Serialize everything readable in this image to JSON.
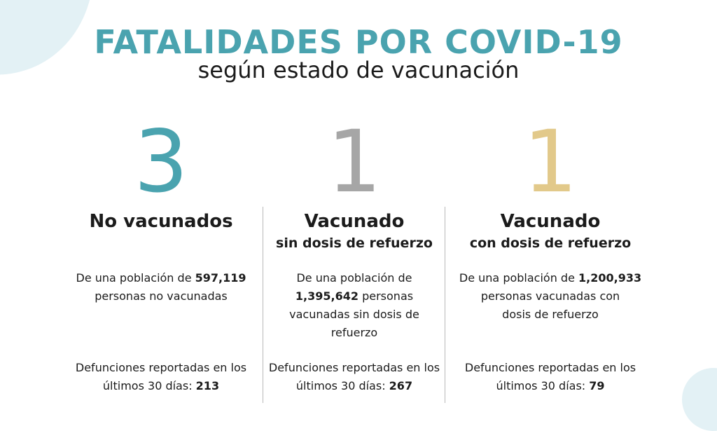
{
  "header": {
    "title": "FATALIDADES POR COVID-19",
    "subtitle": "según estado de vacunación"
  },
  "colors": {
    "teal": "#4aa3af",
    "gray": "#a6a6a6",
    "gold": "#e2c98a",
    "text": "#1b1b1b"
  },
  "columns": [
    {
      "ratio": "3",
      "label": "No vacunados",
      "sublabel": "",
      "population_prefix": "De una población de ",
      "population": "597,119",
      "population_suffix": "personas no vacunadas",
      "deaths_text": "Defunciones reportadas en los últimos 30 días: ",
      "deaths": "213"
    },
    {
      "ratio": "1",
      "label": "Vacunado",
      "sublabel": "sin dosis de refuerzo",
      "population_prefix": "De una población de",
      "population": "1,395,642",
      "population_suffix": "personas vacunadas sin dosis de refuerzo",
      "deaths_text": "Defunciones reportadas en los últimos 30 días: ",
      "deaths": "267"
    },
    {
      "ratio": "1",
      "label": "Vacunado",
      "sublabel": "con dosis de refuerzo",
      "population_prefix": "De una población de ",
      "population": "1,200,933",
      "population_suffix": "personas vacunadas con dosis de refuerzo",
      "deaths_text": "Defunciones reportadas en los últimos 30 días: ",
      "deaths": "79"
    }
  ]
}
